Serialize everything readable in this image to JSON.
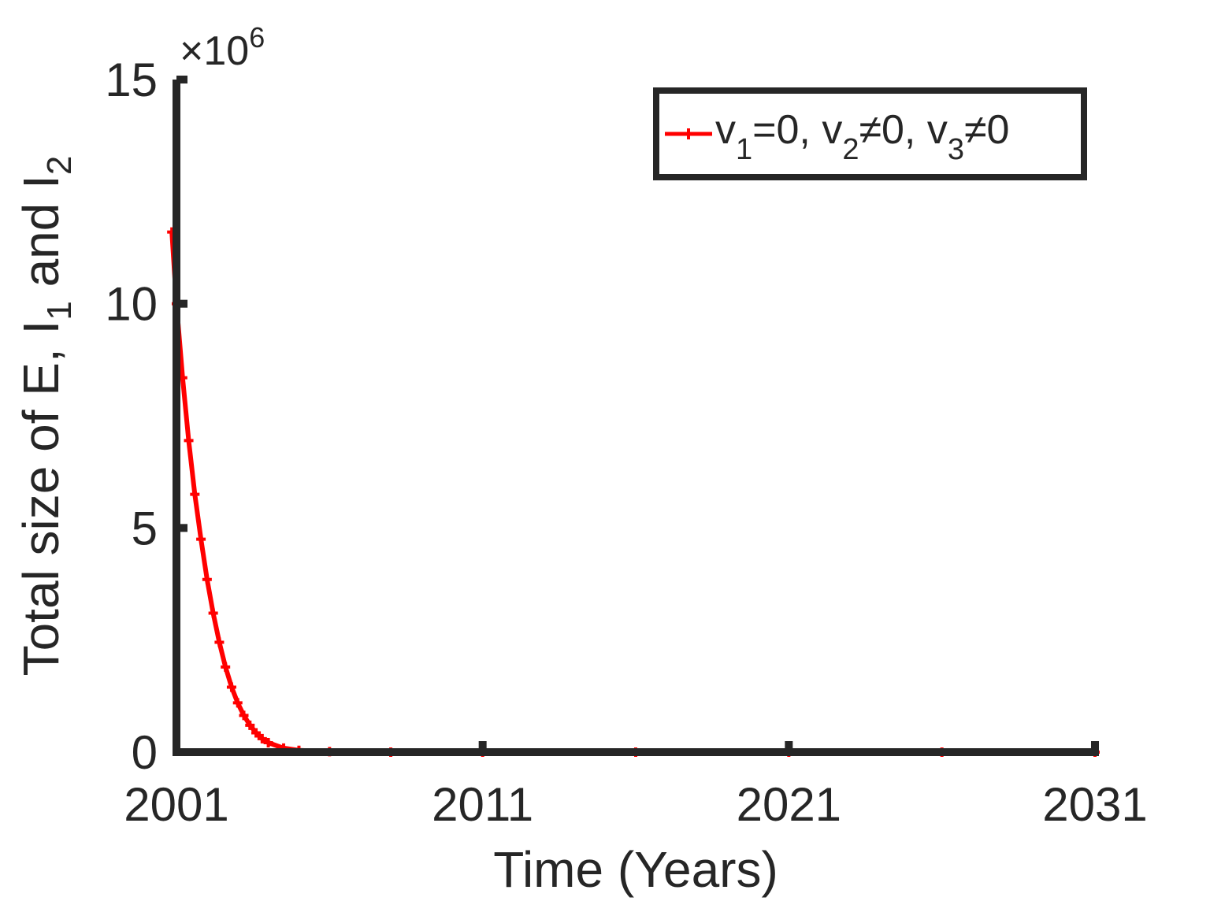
{
  "chart_data": {
    "type": "line",
    "title": "",
    "xlabel": "Time (Years)",
    "ylabel": {
      "prefix": "Total size of E, I",
      "sub1": "1",
      "middle": " and I",
      "sub2": "2"
    },
    "y_exponent": {
      "times": "×10",
      "power": "6"
    },
    "xlim": [
      2001,
      2031
    ],
    "ylim": [
      0,
      15
    ],
    "x_ticks": [
      2001,
      2011,
      2021,
      2031
    ],
    "x_tick_labels": [
      "2001",
      "2011",
      "2021",
      "2031"
    ],
    "y_ticks": [
      0,
      5,
      10,
      15
    ],
    "y_tick_labels": [
      "0",
      "5",
      "10",
      "15"
    ],
    "grid": false,
    "legend_position": "top-right",
    "series": [
      {
        "legend": {
          "parts": [
            {
              "text": "v",
              "sub": "1"
            },
            {
              "text": "=0, v",
              "sub": "2"
            },
            {
              "text": "≠0, v",
              "sub": "3"
            },
            {
              "text": "≠0",
              "sub": ""
            }
          ]
        },
        "color": "#ff0000",
        "marker": "plus",
        "x": [
          2000.85,
          2001.0,
          2001.2,
          2001.4,
          2001.6,
          2001.8,
          2002.0,
          2002.2,
          2002.4,
          2002.6,
          2002.8,
          2003.0,
          2003.2,
          2003.4,
          2003.6,
          2003.8,
          2004.0,
          2004.5,
          2005.0,
          2006.0,
          2008.0,
          2011.0,
          2016.0,
          2021.0,
          2026.0,
          2031.0
        ],
        "y": [
          11.6,
          10.0,
          8.35,
          6.95,
          5.75,
          4.75,
          3.85,
          3.1,
          2.45,
          1.9,
          1.45,
          1.1,
          0.82,
          0.6,
          0.43,
          0.3,
          0.21,
          0.09,
          0.04,
          0.01,
          0.0,
          0.0,
          0.0,
          0.0,
          0.0,
          0.0
        ]
      }
    ]
  }
}
